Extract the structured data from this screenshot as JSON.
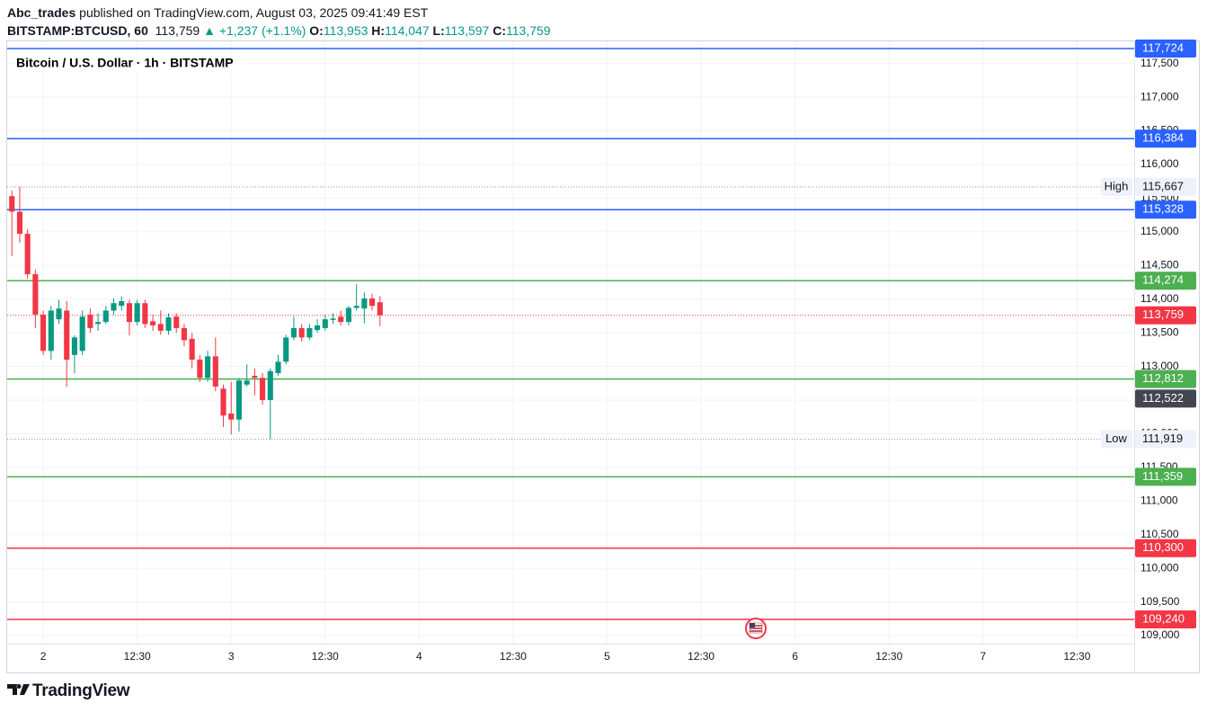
{
  "header": {
    "author": "Abc_trades",
    "published": "published on TradingView.com, August 03, 2025 09:41:49 EST",
    "symbol": "BITSTAMP:BTCUSD, 60",
    "last": "113,759",
    "change": "▲ +1,237 (+1.1%)",
    "open_label": "O:",
    "open": "113,953",
    "high_label": "H:",
    "high": "114,047",
    "low_label": "L:",
    "low": "113,597",
    "close_label": "C:",
    "close": "113,759"
  },
  "chart_data": {
    "type": "candlestick",
    "title": "Bitcoin / U.S. Dollar · 1h · BITSTAMP",
    "up_color": "#089981",
    "down_color": "#f23645",
    "grid": true,
    "x": [
      -4,
      -3,
      -2,
      -1,
      0,
      1,
      2,
      3,
      4,
      5,
      6,
      7,
      8,
      9,
      10,
      11,
      12,
      13,
      14,
      15,
      16,
      17,
      18,
      19,
      20,
      21,
      22,
      23,
      24,
      25,
      26,
      27,
      28,
      29,
      30,
      31,
      32,
      33,
      34,
      35,
      36,
      37,
      38,
      39,
      40,
      41,
      42,
      43
    ],
    "open": [
      115530,
      115300,
      114970,
      114370,
      113770,
      113230,
      113700,
      113830,
      113170,
      113230,
      113770,
      113630,
      113660,
      113830,
      113900,
      113940,
      113660,
      113940,
      113670,
      113630,
      113530,
      113740,
      113570,
      113410,
      113100,
      112830,
      113150,
      112670,
      112300,
      112210,
      112730,
      112860,
      112830,
      112500,
      112900,
      113070,
      113430,
      113570,
      113430,
      113540,
      113570,
      113690,
      113740,
      113660,
      113870,
      113860,
      114010,
      113953
    ],
    "high": [
      115610,
      115667,
      115040,
      114440,
      113830,
      113900,
      113990,
      113970,
      113460,
      113830,
      113860,
      113790,
      113900,
      114010,
      114040,
      113990,
      113990,
      113990,
      113770,
      113830,
      113790,
      113790,
      113630,
      113500,
      113170,
      113230,
      113430,
      112730,
      112770,
      112830,
      113030,
      112970,
      112900,
      112970,
      113170,
      113470,
      113740,
      113630,
      113630,
      113700,
      113770,
      113790,
      113830,
      113900,
      114220,
      114100,
      114080,
      114047
    ],
    "low": [
      114640,
      114840,
      114300,
      113570,
      113170,
      113100,
      113630,
      112700,
      112900,
      113170,
      113500,
      113530,
      113630,
      113770,
      113830,
      113460,
      113610,
      113570,
      113530,
      113470,
      113470,
      113500,
      113300,
      112970,
      112770,
      112770,
      112630,
      112100,
      111990,
      112030,
      112700,
      112570,
      112430,
      111919,
      112860,
      113030,
      113390,
      113370,
      113390,
      113500,
      113530,
      113630,
      113610,
      113610,
      113830,
      113640,
      113830,
      113597
    ],
    "close": [
      115300,
      114970,
      114370,
      113770,
      113230,
      113830,
      113860,
      113100,
      113430,
      113740,
      113570,
      113660,
      113830,
      113940,
      113970,
      113660,
      113940,
      113630,
      113610,
      113530,
      113730,
      113570,
      113390,
      113100,
      112830,
      113150,
      112700,
      112270,
      112210,
      112790,
      112790,
      112830,
      112500,
      112930,
      113070,
      113430,
      113570,
      113430,
      113570,
      113610,
      113700,
      113710,
      113660,
      113870,
      113900,
      114010,
      113900,
      113759
    ],
    "xlim": [
      -4.6,
      139.3
    ],
    "xticks": [
      {
        "value": 0,
        "label": "2"
      },
      {
        "value": 12,
        "label": "12:30"
      },
      {
        "value": 24,
        "label": "3"
      },
      {
        "value": 36,
        "label": "12:30"
      },
      {
        "value": 48,
        "label": "4"
      },
      {
        "value": 60,
        "label": "12:30"
      },
      {
        "value": 72,
        "label": "5"
      },
      {
        "value": 84,
        "label": "12:30"
      },
      {
        "value": 96,
        "label": "6"
      },
      {
        "value": 108,
        "label": "12:30"
      },
      {
        "value": 120,
        "label": "7"
      },
      {
        "value": 132,
        "label": "12:30"
      }
    ],
    "ylim": [
      108880,
      117750
    ],
    "yticks": [
      {
        "value": 109000,
        "label": "109,000"
      },
      {
        "value": 109500,
        "label": "109,500"
      },
      {
        "value": 110000,
        "label": "110,000"
      },
      {
        "value": 110500,
        "label": "110,500"
      },
      {
        "value": 111000,
        "label": "111,000"
      },
      {
        "value": 111500,
        "label": "111,500"
      },
      {
        "value": 112000,
        "label": "112,000"
      },
      {
        "value": 112500,
        "label": "112,500"
      },
      {
        "value": 113000,
        "label": "113,000"
      },
      {
        "value": 113500,
        "label": "113,500"
      },
      {
        "value": 114000,
        "label": "114,000"
      },
      {
        "value": 114500,
        "label": "114,500"
      },
      {
        "value": 115000,
        "label": "115,000"
      },
      {
        "value": 115500,
        "label": "115,500"
      },
      {
        "value": 116000,
        "label": "116,000"
      },
      {
        "value": 116500,
        "label": "116,500"
      },
      {
        "value": 117000,
        "label": "117,000"
      },
      {
        "value": 117500,
        "label": "117,500"
      }
    ],
    "levels": [
      {
        "value": 117724,
        "label": "117,724",
        "color": "#2962ff",
        "line": "solid"
      },
      {
        "value": 116384,
        "label": "116,384",
        "color": "#2962ff",
        "line": "solid"
      },
      {
        "value": 115328,
        "label": "115,328",
        "color": "#2962ff",
        "line": "solid"
      },
      {
        "value": 114274,
        "label": "114,274",
        "color": "#4caf50",
        "line": "solid"
      },
      {
        "value": 113759,
        "label": "113,759",
        "color": "#f23645",
        "line": "dotted"
      },
      {
        "value": 112812,
        "label": "112,812",
        "color": "#4caf50",
        "line": "solid"
      },
      {
        "value": 112522,
        "label": "112,522",
        "color": "#434651",
        "line": "none"
      },
      {
        "value": 111359,
        "label": "111,359",
        "color": "#4caf50",
        "line": "solid"
      },
      {
        "value": 110300,
        "label": "110,300",
        "color": "#f23645",
        "line": "solid"
      },
      {
        "value": 109240,
        "label": "109,240",
        "color": "#f23645",
        "line": "solid"
      }
    ],
    "extremes": [
      {
        "name": "High",
        "value": 115667,
        "label": "115,667"
      },
      {
        "name": "Low",
        "value": 111919,
        "label": "111,919"
      }
    ]
  },
  "footer": {
    "brand": "TradingView"
  }
}
